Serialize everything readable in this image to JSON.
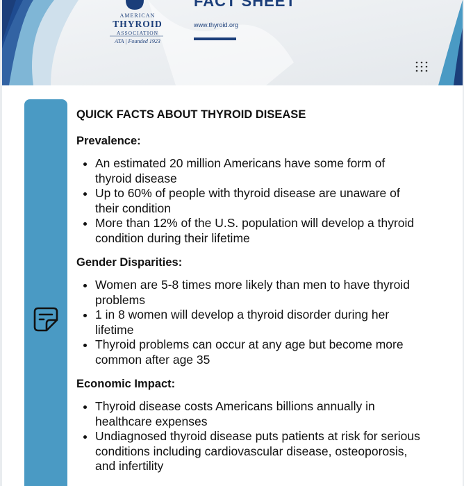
{
  "header": {
    "logo": {
      "line1": "AMERICAN",
      "line2": "THYROID",
      "line3": "ASSOCIATION",
      "line4": "ATA | Founded 1923"
    },
    "title": "FACT SHEET",
    "url": "www.thyroid.org"
  },
  "content": {
    "title": "QUICK FACTS ABOUT THYROID DISEASE",
    "sections": [
      {
        "heading": "Prevalence:",
        "items": [
          "An estimated 20 million Americans have some form of thyroid disease",
          "Up to 60% of people with thyroid disease are unaware of their condition",
          "More than 12% of the U.S. population will develop a thyroid condition during their lifetime"
        ]
      },
      {
        "heading": "Gender Disparities:",
        "items": [
          "Women are 5-8 times more likely than men to have thyroid problems",
          "1 in 8 women will develop a thyroid disorder during her lifetime",
          "Thyroid problems can occur at any age but become more common after age 35"
        ]
      },
      {
        "heading": "Economic Impact:",
        "items": [
          "Thyroid disease costs Americans billions annually in healthcare expenses",
          "Undiagnosed thyroid disease puts patients at risk for serious conditions including cardiovascular disease, osteoporosis, and infertility"
        ]
      }
    ]
  }
}
